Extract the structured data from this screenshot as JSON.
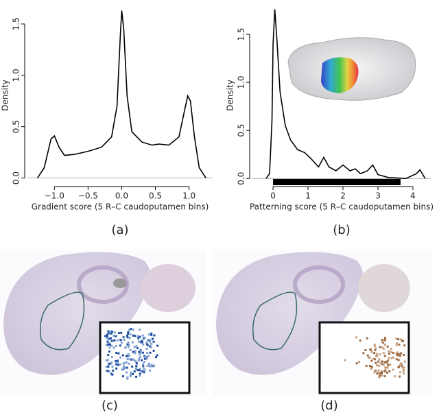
{
  "chart_data": [
    {
      "type": "line",
      "label": "(a)",
      "xlabel": "Gradient score (5 R–C caudoputamen bins)",
      "ylabel": "Density",
      "color": "#000000",
      "x": [
        -1.25,
        -1.15,
        -1.05,
        -1.0,
        -0.93,
        -0.85,
        -0.7,
        -0.5,
        -0.3,
        -0.15,
        -0.07,
        -0.02,
        0.0,
        0.03,
        0.08,
        0.15,
        0.3,
        0.45,
        0.55,
        0.7,
        0.85,
        0.93,
        0.98,
        1.02,
        1.08,
        1.15,
        1.25
      ],
      "values": [
        0.0,
        0.1,
        0.38,
        0.41,
        0.3,
        0.22,
        0.23,
        0.26,
        0.3,
        0.4,
        0.7,
        1.4,
        1.63,
        1.45,
        0.8,
        0.45,
        0.35,
        0.32,
        0.33,
        0.32,
        0.4,
        0.65,
        0.8,
        0.75,
        0.4,
        0.1,
        0.0
      ],
      "xlim": [
        -1.4,
        1.35
      ],
      "ylim": [
        -0.07,
        1.68
      ],
      "xticks": [
        {
          "value": -1.0,
          "label": "−1.0"
        },
        {
          "value": -0.5,
          "label": "−0.5"
        },
        {
          "value": 0.0,
          "label": "0.0"
        },
        {
          "value": 0.5,
          "label": "0.5"
        },
        {
          "value": 1.0,
          "label": "1.0"
        }
      ],
      "yticks": [
        {
          "value": 0.0,
          "label": "0.0"
        },
        {
          "value": 0.5,
          "label": "0.5"
        },
        {
          "value": 1.0,
          "label": "1.0"
        },
        {
          "value": 1.5,
          "label": "1.5"
        }
      ]
    },
    {
      "type": "line",
      "label": "(b)",
      "xlabel": "Patterning score (5 R–C caudoputamen bins)",
      "ylabel": "Density",
      "color": "#000000",
      "x": [
        -0.2,
        -0.1,
        -0.03,
        0.0,
        0.05,
        0.1,
        0.2,
        0.35,
        0.5,
        0.7,
        0.9,
        1.1,
        1.3,
        1.45,
        1.6,
        1.8,
        2.0,
        2.2,
        2.35,
        2.5,
        2.7,
        2.85,
        3.0,
        3.3,
        3.8,
        4.1,
        4.2,
        4.35
      ],
      "values": [
        0.0,
        0.05,
        0.6,
        1.4,
        1.76,
        1.5,
        0.9,
        0.55,
        0.4,
        0.3,
        0.27,
        0.2,
        0.12,
        0.22,
        0.12,
        0.08,
        0.14,
        0.08,
        0.1,
        0.05,
        0.08,
        0.14,
        0.04,
        0.01,
        0.0,
        0.05,
        0.09,
        0.0
      ],
      "xlim": [
        -0.59,
        4.51
      ],
      "ylim": [
        -0.07,
        1.8
      ],
      "xticks": [
        0,
        1,
        2,
        3,
        4
      ],
      "yticks": [
        {
          "value": 0.0,
          "label": "0.0"
        },
        {
          "value": 0.5,
          "label": "0.5"
        },
        {
          "value": 1.0,
          "label": "1.0"
        },
        {
          "value": 1.5,
          "label": "1.5"
        }
      ]
    }
  ],
  "image_panels": [
    {
      "label": "(c)"
    },
    {
      "label": "(d)"
    }
  ]
}
